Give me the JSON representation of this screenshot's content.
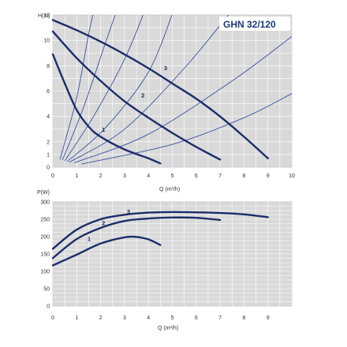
{
  "chart_data": [
    {
      "type": "line",
      "title": "GHN 32/120",
      "ylabel": "H(m)",
      "xlabel": "Q (m³/h)",
      "xlim": [
        0,
        10
      ],
      "ylim": [
        0,
        12
      ],
      "x_ticks": [
        "0",
        "1",
        "2",
        "3",
        "4",
        "5",
        "6",
        "7",
        "8",
        "9",
        "10"
      ],
      "y_ticks": [
        "0",
        "1",
        "2",
        "4",
        "6",
        "8",
        "10",
        "12"
      ],
      "grid": true,
      "series": [
        {
          "name": "1",
          "points": [
            [
              0,
              8.9
            ],
            [
              0.5,
              6.6
            ],
            [
              1,
              4.5
            ],
            [
              1.5,
              3.2
            ],
            [
              2,
              2.4
            ],
            [
              3,
              1.4
            ],
            [
              4,
              0.7
            ],
            [
              4.5,
              0.3
            ]
          ]
        },
        {
          "name": "2",
          "points": [
            [
              0,
              10.7
            ],
            [
              1,
              8.6
            ],
            [
              2,
              6.8
            ],
            [
              3,
              5.2
            ],
            [
              4,
              3.9
            ],
            [
              5,
              2.7
            ],
            [
              6,
              1.6
            ],
            [
              7,
              0.6
            ]
          ]
        },
        {
          "name": "3",
          "points": [
            [
              0,
              11.6
            ],
            [
              1,
              10.8
            ],
            [
              2,
              9.9
            ],
            [
              3,
              8.9
            ],
            [
              4,
              7.8
            ],
            [
              5,
              6.6
            ],
            [
              6,
              5.4
            ],
            [
              7,
              4.0
            ],
            [
              8,
              2.4
            ],
            [
              9,
              0.7
            ]
          ]
        }
      ],
      "system_curves": [
        [
          [
            0.3,
            0.6
          ],
          [
            1,
            5.5
          ],
          [
            1.5,
            10.5
          ],
          [
            1.8,
            13
          ]
        ],
        [
          [
            0.4,
            0.55
          ],
          [
            1.3,
            4.8
          ],
          [
            2.2,
            9.8
          ],
          [
            2.8,
            13
          ]
        ],
        [
          [
            0.5,
            0.5
          ],
          [
            1.7,
            4
          ],
          [
            3,
            8.5
          ],
          [
            3.9,
            12.6
          ]
        ],
        [
          [
            0.6,
            0.45
          ],
          [
            2.2,
            3.1
          ],
          [
            4,
            7.5
          ],
          [
            5.1,
            12.6
          ]
        ],
        [
          [
            0.7,
            0.4
          ],
          [
            3,
            3
          ],
          [
            5.5,
            7.8
          ],
          [
            7.6,
            12.6
          ]
        ],
        [
          [
            0.9,
            0.35
          ],
          [
            4,
            2.6
          ],
          [
            7.5,
            6.8
          ],
          [
            10,
            10.3
          ]
        ],
        [
          [
            1.2,
            0.25
          ],
          [
            5,
            1.8
          ],
          [
            8,
            3.9
          ],
          [
            10,
            5.8
          ]
        ]
      ],
      "curve_labels": [
        "1",
        "2",
        "3"
      ]
    },
    {
      "type": "line",
      "ylabel": "P(W)",
      "xlabel": "Q (m³/h)",
      "xlim": [
        0,
        10
      ],
      "ylim": [
        0,
        300
      ],
      "x_ticks": [
        "0",
        "1",
        "2",
        "3",
        "4",
        "5",
        "6",
        "7",
        "8",
        "9"
      ],
      "y_ticks": [
        "0",
        "50",
        "100",
        "150",
        "200",
        "250",
        "300"
      ],
      "grid": true,
      "series": [
        {
          "name": "1",
          "points": [
            [
              0,
              117
            ],
            [
              1,
              148
            ],
            [
              2,
              180
            ],
            [
              3,
              198
            ],
            [
              3.5,
              199
            ],
            [
              4,
              192
            ],
            [
              4.5,
              176
            ]
          ]
        },
        {
          "name": "2",
          "points": [
            [
              0,
              138
            ],
            [
              1,
              193
            ],
            [
              2,
              225
            ],
            [
              3,
              245
            ],
            [
              4,
              252
            ],
            [
              5,
              255
            ],
            [
              6,
              254
            ],
            [
              7,
              248
            ]
          ]
        },
        {
          "name": "3",
          "points": [
            [
              0,
              165
            ],
            [
              1,
              220
            ],
            [
              2,
              250
            ],
            [
              3,
              263
            ],
            [
              4,
              269
            ],
            [
              5,
              271
            ],
            [
              6,
              270
            ],
            [
              7,
              268
            ],
            [
              8,
              264
            ],
            [
              9,
              256
            ]
          ]
        }
      ],
      "curve_labels": [
        "1",
        "2",
        "3"
      ]
    }
  ]
}
